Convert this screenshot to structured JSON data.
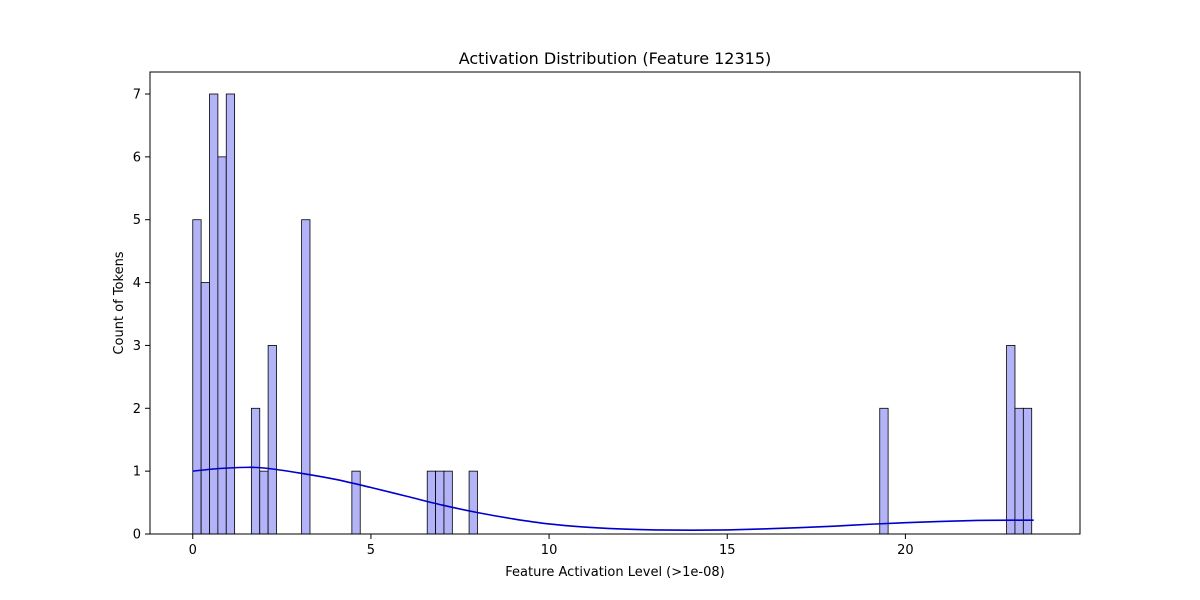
{
  "chart_data": {
    "type": "bar",
    "title": "Activation Distribution (Feature 12315)",
    "xlabel": "Feature Activation Level (>1e-08)",
    "ylabel": "Count of Tokens",
    "xlim": [
      -1.2,
      24.9
    ],
    "ylim": [
      0,
      7.35
    ],
    "bin_width": 0.235,
    "xticks": [
      0,
      5,
      10,
      15,
      20
    ],
    "yticks": [
      0,
      1,
      2,
      3,
      4,
      5,
      6,
      7
    ],
    "grid": false,
    "legend": "none",
    "bar_color": "#b3b3f8",
    "bar_edge_color": "#000000",
    "kde_color": "#0000cc",
    "bins": [
      {
        "x": 0.0,
        "count": 5
      },
      {
        "x": 0.235,
        "count": 4
      },
      {
        "x": 0.47,
        "count": 7
      },
      {
        "x": 0.705,
        "count": 6
      },
      {
        "x": 0.94,
        "count": 7
      },
      {
        "x": 1.645,
        "count": 2
      },
      {
        "x": 1.88,
        "count": 1
      },
      {
        "x": 2.115,
        "count": 3
      },
      {
        "x": 3.055,
        "count": 5
      },
      {
        "x": 4.465,
        "count": 1
      },
      {
        "x": 6.58,
        "count": 1
      },
      {
        "x": 6.815,
        "count": 1
      },
      {
        "x": 7.05,
        "count": 1
      },
      {
        "x": 7.755,
        "count": 1
      },
      {
        "x": 19.28,
        "count": 2
      },
      {
        "x": 22.84,
        "count": 3
      },
      {
        "x": 23.075,
        "count": 2
      },
      {
        "x": 23.31,
        "count": 2
      }
    ],
    "kde": {
      "x": [
        0,
        0.5,
        1,
        1.5,
        2,
        3,
        4,
        5,
        6,
        7,
        8,
        9,
        10,
        11,
        12,
        13,
        14,
        15,
        16,
        17,
        18,
        19,
        20,
        21,
        22,
        23,
        23.6
      ],
      "y": [
        1.0,
        1.03,
        1.05,
        1.06,
        1.05,
        0.97,
        0.87,
        0.74,
        0.6,
        0.46,
        0.34,
        0.24,
        0.16,
        0.11,
        0.08,
        0.065,
        0.06,
        0.065,
        0.08,
        0.1,
        0.125,
        0.155,
        0.18,
        0.2,
        0.215,
        0.22,
        0.22
      ]
    }
  }
}
